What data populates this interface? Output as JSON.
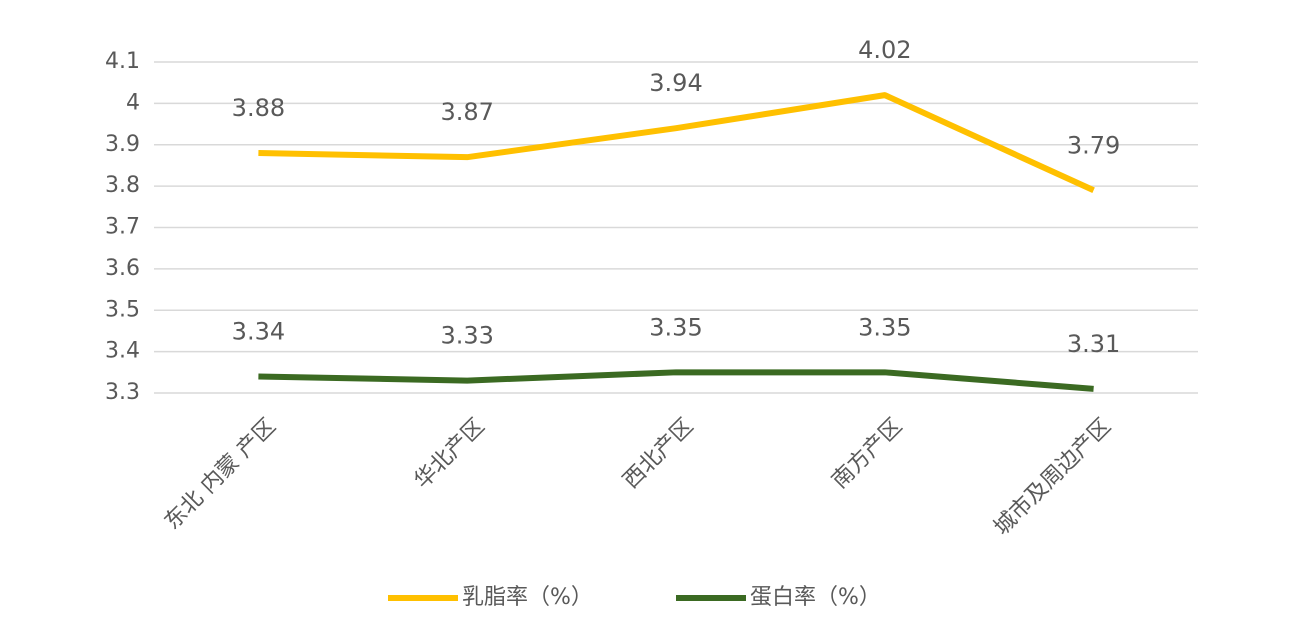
{
  "chart_data": {
    "type": "line",
    "categories": [
      "东北 内蒙 产区",
      "华北产区",
      "西北产区",
      "南方产区",
      "城市及周边产区"
    ],
    "series": [
      {
        "name": "乳脂率（%）",
        "color": "#ffc000",
        "values": [
          3.88,
          3.87,
          3.94,
          4.02,
          3.79
        ]
      },
      {
        "name": "蛋白率（%）",
        "color": "#3b6a22",
        "values": [
          3.34,
          3.33,
          3.35,
          3.35,
          3.31
        ]
      }
    ],
    "ylim": [
      3.3,
      4.1
    ],
    "yticks": [
      3.3,
      3.4,
      3.5,
      3.6,
      3.7,
      3.8,
      3.9,
      4,
      4.1
    ],
    "grid": true,
    "legend": "bottom"
  }
}
